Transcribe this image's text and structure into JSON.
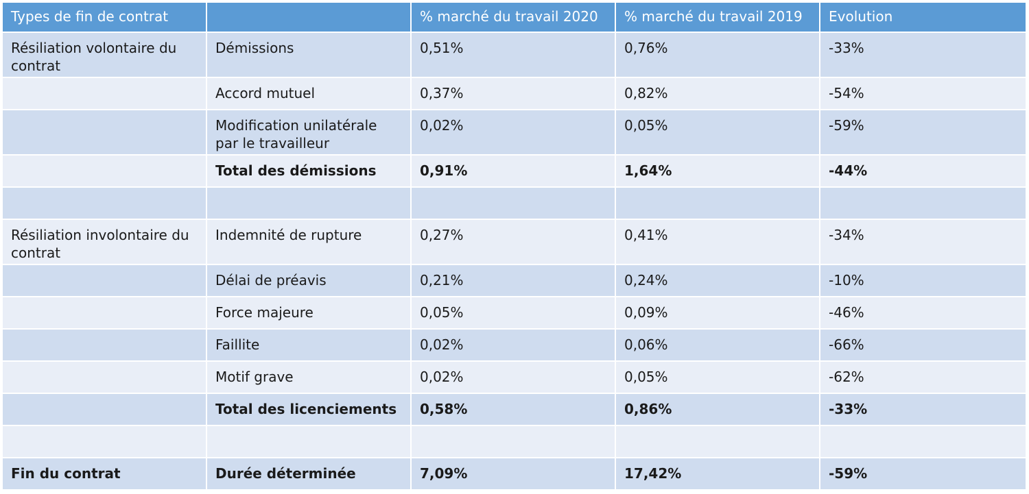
{
  "headers": [
    "Types de fin de contrat",
    "",
    "% marché du travail 2020",
    "% marché du travail 2019",
    "Evolution"
  ],
  "rows": [
    {
      "type": "Résiliation volontaire du contrat",
      "cause": "Démissions",
      "y2020": "0,51%",
      "y2019": "0,76%",
      "evolution": "-33%"
    },
    {
      "type": "",
      "cause": "Accord mutuel",
      "y2020": "0,37%",
      "y2019": "0,82%",
      "evolution": "-54%"
    },
    {
      "type": "",
      "cause": "Modification unilatérale par le travailleur",
      "y2020": "0,02%",
      "y2019": "0,05%",
      "evolution": "-59%"
    },
    {
      "type": "",
      "cause": "Total des démissions",
      "y2020": "0,91%",
      "y2019": "1,64%",
      "evolution": "-44%"
    },
    {
      "type": "",
      "cause": "",
      "y2020": "",
      "y2019": "",
      "evolution": ""
    },
    {
      "type": "Résiliation involontaire du contrat",
      "cause": "Indemnité de rupture",
      "y2020": "0,27%",
      "y2019": "0,41%",
      "evolution": "-34%"
    },
    {
      "type": "",
      "cause": "Délai de préavis",
      "y2020": "0,21%",
      "y2019": "0,24%",
      "evolution": "-10%"
    },
    {
      "type": "",
      "cause": "Force majeure",
      "y2020": "0,05%",
      "y2019": "0,09%",
      "evolution": "-46%"
    },
    {
      "type": "",
      "cause": "Faillite",
      "y2020": "0,02%",
      "y2019": "0,06%",
      "evolution": "-66%"
    },
    {
      "type": "",
      "cause": "Motif grave",
      "y2020": "0,02%",
      "y2019": "0,05%",
      "evolution": "-62%"
    },
    {
      "type": "",
      "cause": "Total des licenciements",
      "y2020": "0,58%",
      "y2019": "0,86%",
      "evolution": "-33%"
    },
    {
      "type": "",
      "cause": "",
      "y2020": "",
      "y2019": "",
      "evolution": ""
    },
    {
      "type": "Fin du contrat",
      "cause": "Durée déterminée",
      "y2020": "7,09%",
      "y2019": "17,42%",
      "evolution": "-59%"
    }
  ],
  "colors": {
    "header_bg": "#5b9bd5",
    "row_dark": "#cfdcef",
    "row_light": "#e9eef7"
  }
}
